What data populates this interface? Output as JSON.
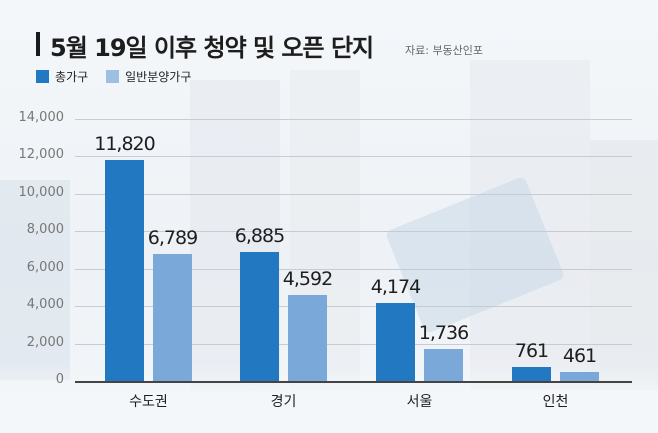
{
  "title": "5월 19일 이후 청약 및 오픈 단지",
  "source": "자료: 부동산인포",
  "colors": {
    "total": "#2378c2",
    "general": "#7aa8d8"
  },
  "legend": [
    {
      "label": "총가구",
      "color": "#2378c2"
    },
    {
      "label": "일반분양가구",
      "color": "#7aa8d8"
    }
  ],
  "y_ticks": [
    "0",
    "2,000",
    "4,000",
    "6,000",
    "8,000",
    "10,000",
    "12,000",
    "14,000"
  ],
  "categories": [
    "수도권",
    "경기",
    "서울",
    "인천"
  ],
  "value_labels": {
    "total": [
      "11,820",
      "6,885",
      "4,174",
      "761"
    ],
    "general": [
      "6,789",
      "4,592",
      "1,736",
      "461"
    ]
  },
  "chart_data": {
    "type": "bar",
    "title": "5월 19일 이후 청약 및 오픈 단지",
    "subtitle": "자료: 부동산인포",
    "categories": [
      "수도권",
      "경기",
      "서울",
      "인천"
    ],
    "series": [
      {
        "name": "총가구",
        "values": [
          11820,
          6885,
          4174,
          761
        ],
        "color": "#2378c2"
      },
      {
        "name": "일반분양가구",
        "values": [
          6789,
          4592,
          1736,
          461
        ],
        "color": "#7aa8d8"
      }
    ],
    "xlabel": "",
    "ylabel": "",
    "ylim": [
      0,
      14000
    ],
    "yticks": [
      0,
      2000,
      4000,
      6000,
      8000,
      10000,
      12000,
      14000
    ],
    "grid": true,
    "legend_position": "top-left"
  }
}
